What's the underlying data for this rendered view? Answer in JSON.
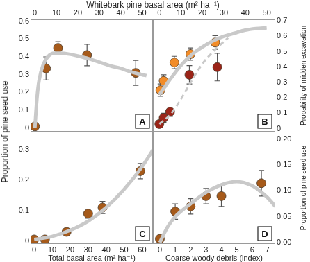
{
  "chart_data": [
    {
      "type": "scatter",
      "annotation": "A",
      "xlabel": "Whitebark pine basal area (m² ha⁻¹)",
      "ylabel": "Proportion of pine seed use",
      "xlim": [
        -2,
        55
      ],
      "xticks": [
        0,
        10,
        20,
        30,
        40,
        50
      ],
      "ylim": [
        -0.02,
        0.61
      ],
      "yticks": [
        0,
        0.1,
        0.2,
        0.3,
        0.4,
        0.5,
        0.6
      ],
      "grid": false,
      "series": [
        {
          "type": "line",
          "color": "#c9c9c9",
          "line_style": "solid",
          "x": [
            0,
            1,
            2,
            4,
            6,
            9,
            12,
            16,
            20,
            25,
            30,
            35,
            40,
            45,
            50,
            52
          ],
          "values": [
            0,
            0.17,
            0.27,
            0.36,
            0.4,
            0.42,
            0.42,
            0.415,
            0.405,
            0.39,
            0.37,
            0.35,
            0.335,
            0.315,
            0.3,
            0.295
          ]
        },
        {
          "type": "scatter",
          "color": "#a65a1a",
          "marker": "circle",
          "x": [
            0,
            5.2,
            10.8,
            24.3,
            47
          ],
          "values": [
            0.01,
            0.335,
            0.45,
            0.41,
            0.31
          ],
          "errors": [
            0.005,
            0.065,
            0.035,
            0.06,
            0.07
          ]
        }
      ]
    },
    {
      "type": "scatter",
      "annotation": "B",
      "ylabel": "Probability of midden excavation",
      "xlim": [
        -3,
        54
      ],
      "xticks": [
        0,
        10,
        20,
        30,
        40,
        50
      ],
      "ylim": [
        -0.02,
        0.71
      ],
      "yticks": [
        0,
        0.1,
        0.2,
        0.3,
        0.4,
        0.5,
        0.6,
        0.7
      ],
      "grid": false,
      "series": [
        {
          "type": "line",
          "color": "#c9c9c9",
          "line_style": "solid",
          "x": [
            0,
            5,
            10,
            15,
            20,
            25,
            30,
            35,
            40,
            45,
            50
          ],
          "values": [
            0.22,
            0.32,
            0.41,
            0.48,
            0.53,
            0.57,
            0.6,
            0.62,
            0.64,
            0.65,
            0.655
          ]
        },
        {
          "type": "line",
          "color": "#c9c9c9",
          "line_style": "dashed",
          "x": [
            0,
            5,
            10,
            15,
            20,
            25,
            32
          ],
          "values": [
            0.03,
            0.09,
            0.19,
            0.31,
            0.42,
            0.5,
            0.59
          ]
        },
        {
          "type": "scatter",
          "color": "#f28c28",
          "marker": "circle",
          "x": [
            0.5,
            2,
            7,
            14.5,
            26
          ],
          "values": [
            0.25,
            0.31,
            0.43,
            0.485,
            0.56
          ],
          "errors": [
            0.04,
            0.04,
            0.04,
            0.04,
            0.045
          ]
        },
        {
          "type": "scatter",
          "color": "#9b2418",
          "marker": "circle",
          "x": [
            0,
            2,
            5,
            14,
            27
          ],
          "values": [
            0.03,
            0.07,
            0.11,
            0.35,
            0.4
          ],
          "errors": [
            0.02,
            0.03,
            0.03,
            0.06,
            0.09
          ]
        }
      ]
    },
    {
      "type": "scatter",
      "annotation": "C",
      "xlabel": "Total basal area (m² ha⁻¹)",
      "xlim": [
        -2,
        66
      ],
      "xticks": [
        0,
        10,
        20,
        30,
        40,
        50,
        60
      ],
      "ylim": [
        -0.01,
        0.36
      ],
      "yticks": [
        0,
        0.1,
        0.2,
        0.3
      ],
      "grid": false,
      "series": [
        {
          "type": "line",
          "color": "#c9c9c9",
          "line_style": "solid",
          "x": [
            0,
            10,
            20,
            30,
            40,
            50,
            60,
            66
          ],
          "values": [
            0.005,
            0.015,
            0.035,
            0.065,
            0.11,
            0.17,
            0.245,
            0.3
          ]
        },
        {
          "type": "scatter",
          "color": "#a65a1a",
          "marker": "circle",
          "x": [
            0,
            6,
            18,
            30,
            38,
            59
          ],
          "values": [
            0.005,
            0.005,
            0.03,
            0.09,
            0.11,
            0.23
          ],
          "errors": [
            0.004,
            0.004,
            0.01,
            0.015,
            0.02,
            0.025
          ]
        }
      ]
    },
    {
      "type": "scatter",
      "annotation": "D",
      "xlabel": "Coarse woody debris (index)",
      "ylabel": "Proportion of pine seed use",
      "xlim": [
        -0.45,
        7.5
      ],
      "xticks": [
        0,
        1,
        2,
        3,
        4,
        5,
        6,
        7
      ],
      "ylim": [
        -0.003,
        0.215
      ],
      "yticks": [
        {
          "value": 0,
          "label": "0.00"
        },
        {
          "value": 0.05,
          "label": "0.05"
        },
        {
          "value": 0.1,
          "label": "0.10"
        },
        {
          "value": 0.15,
          "label": "0.15"
        },
        {
          "value": 0.2,
          "label": "0.20"
        }
      ],
      "grid": false,
      "series": [
        {
          "type": "line",
          "color": "#c9c9c9",
          "line_style": "solid",
          "x": [
            0,
            0.5,
            1,
            2,
            3,
            4,
            5,
            6,
            6.5,
            7,
            7.5
          ],
          "values": [
            0,
            0.03,
            0.05,
            0.075,
            0.097,
            0.112,
            0.118,
            0.11,
            0.1,
            0.087,
            0.07
          ]
        },
        {
          "type": "scatter",
          "color": "#a65a1a",
          "marker": "circle",
          "x": [
            0,
            1,
            2,
            3,
            4,
            6.6
          ],
          "values": [
            0.007,
            0.06,
            0.07,
            0.09,
            0.09,
            0.115
          ],
          "errors": [
            0.005,
            0.015,
            0.015,
            0.015,
            0.02,
            0.025
          ]
        }
      ]
    }
  ]
}
